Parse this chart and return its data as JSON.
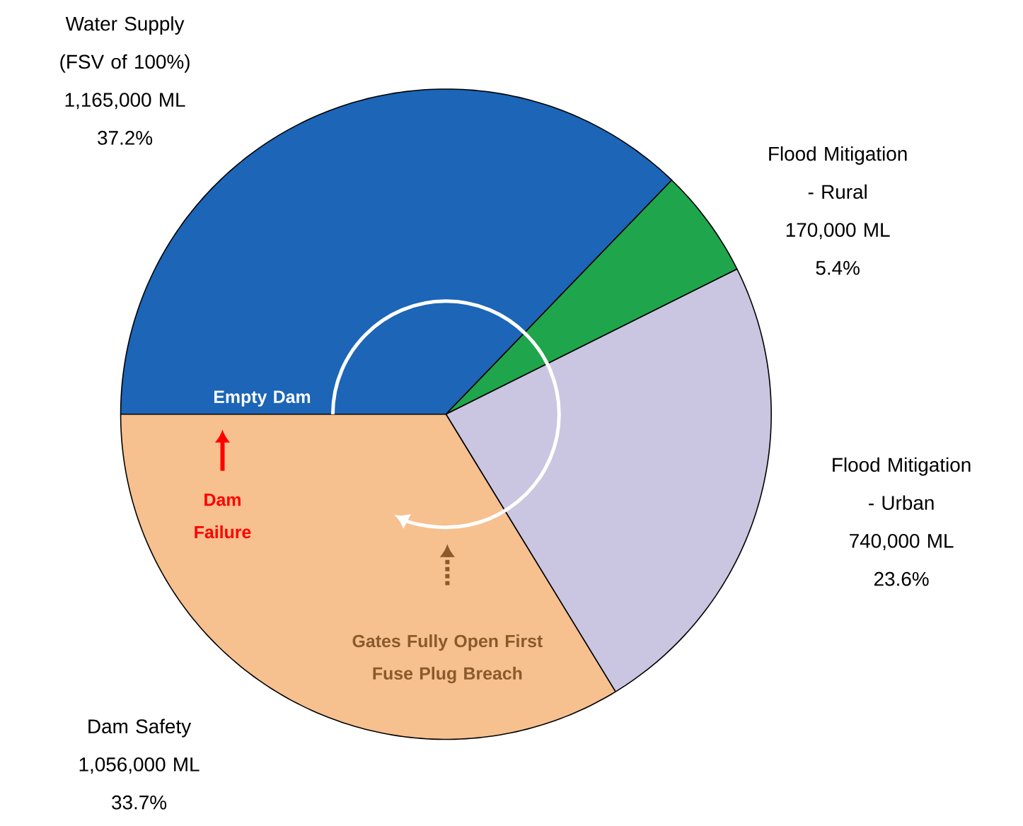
{
  "chart_data": {
    "type": "pie",
    "categories": [
      "Water Supply (FSV of 100%)",
      "Flood Mitigation - Rural",
      "Flood Mitigation - Urban",
      "Dam Safety"
    ],
    "values": [
      1165000,
      170000,
      740000,
      1056000
    ],
    "value_labels": [
      "1,165,000 ML",
      "170,000 ML",
      "740,000 ML",
      "1,056,000 ML"
    ],
    "colors": [
      "#1c65b7",
      "#1fa54b",
      "#cac5e0",
      "#f6c08f"
    ],
    "annotations": [
      "37.2%",
      "5.4%",
      "23.6%",
      "33.7%",
      "Empty Dam",
      "Dam Failure",
      "Gates Fully Open First Fuse Plug Breach"
    ]
  }
}
